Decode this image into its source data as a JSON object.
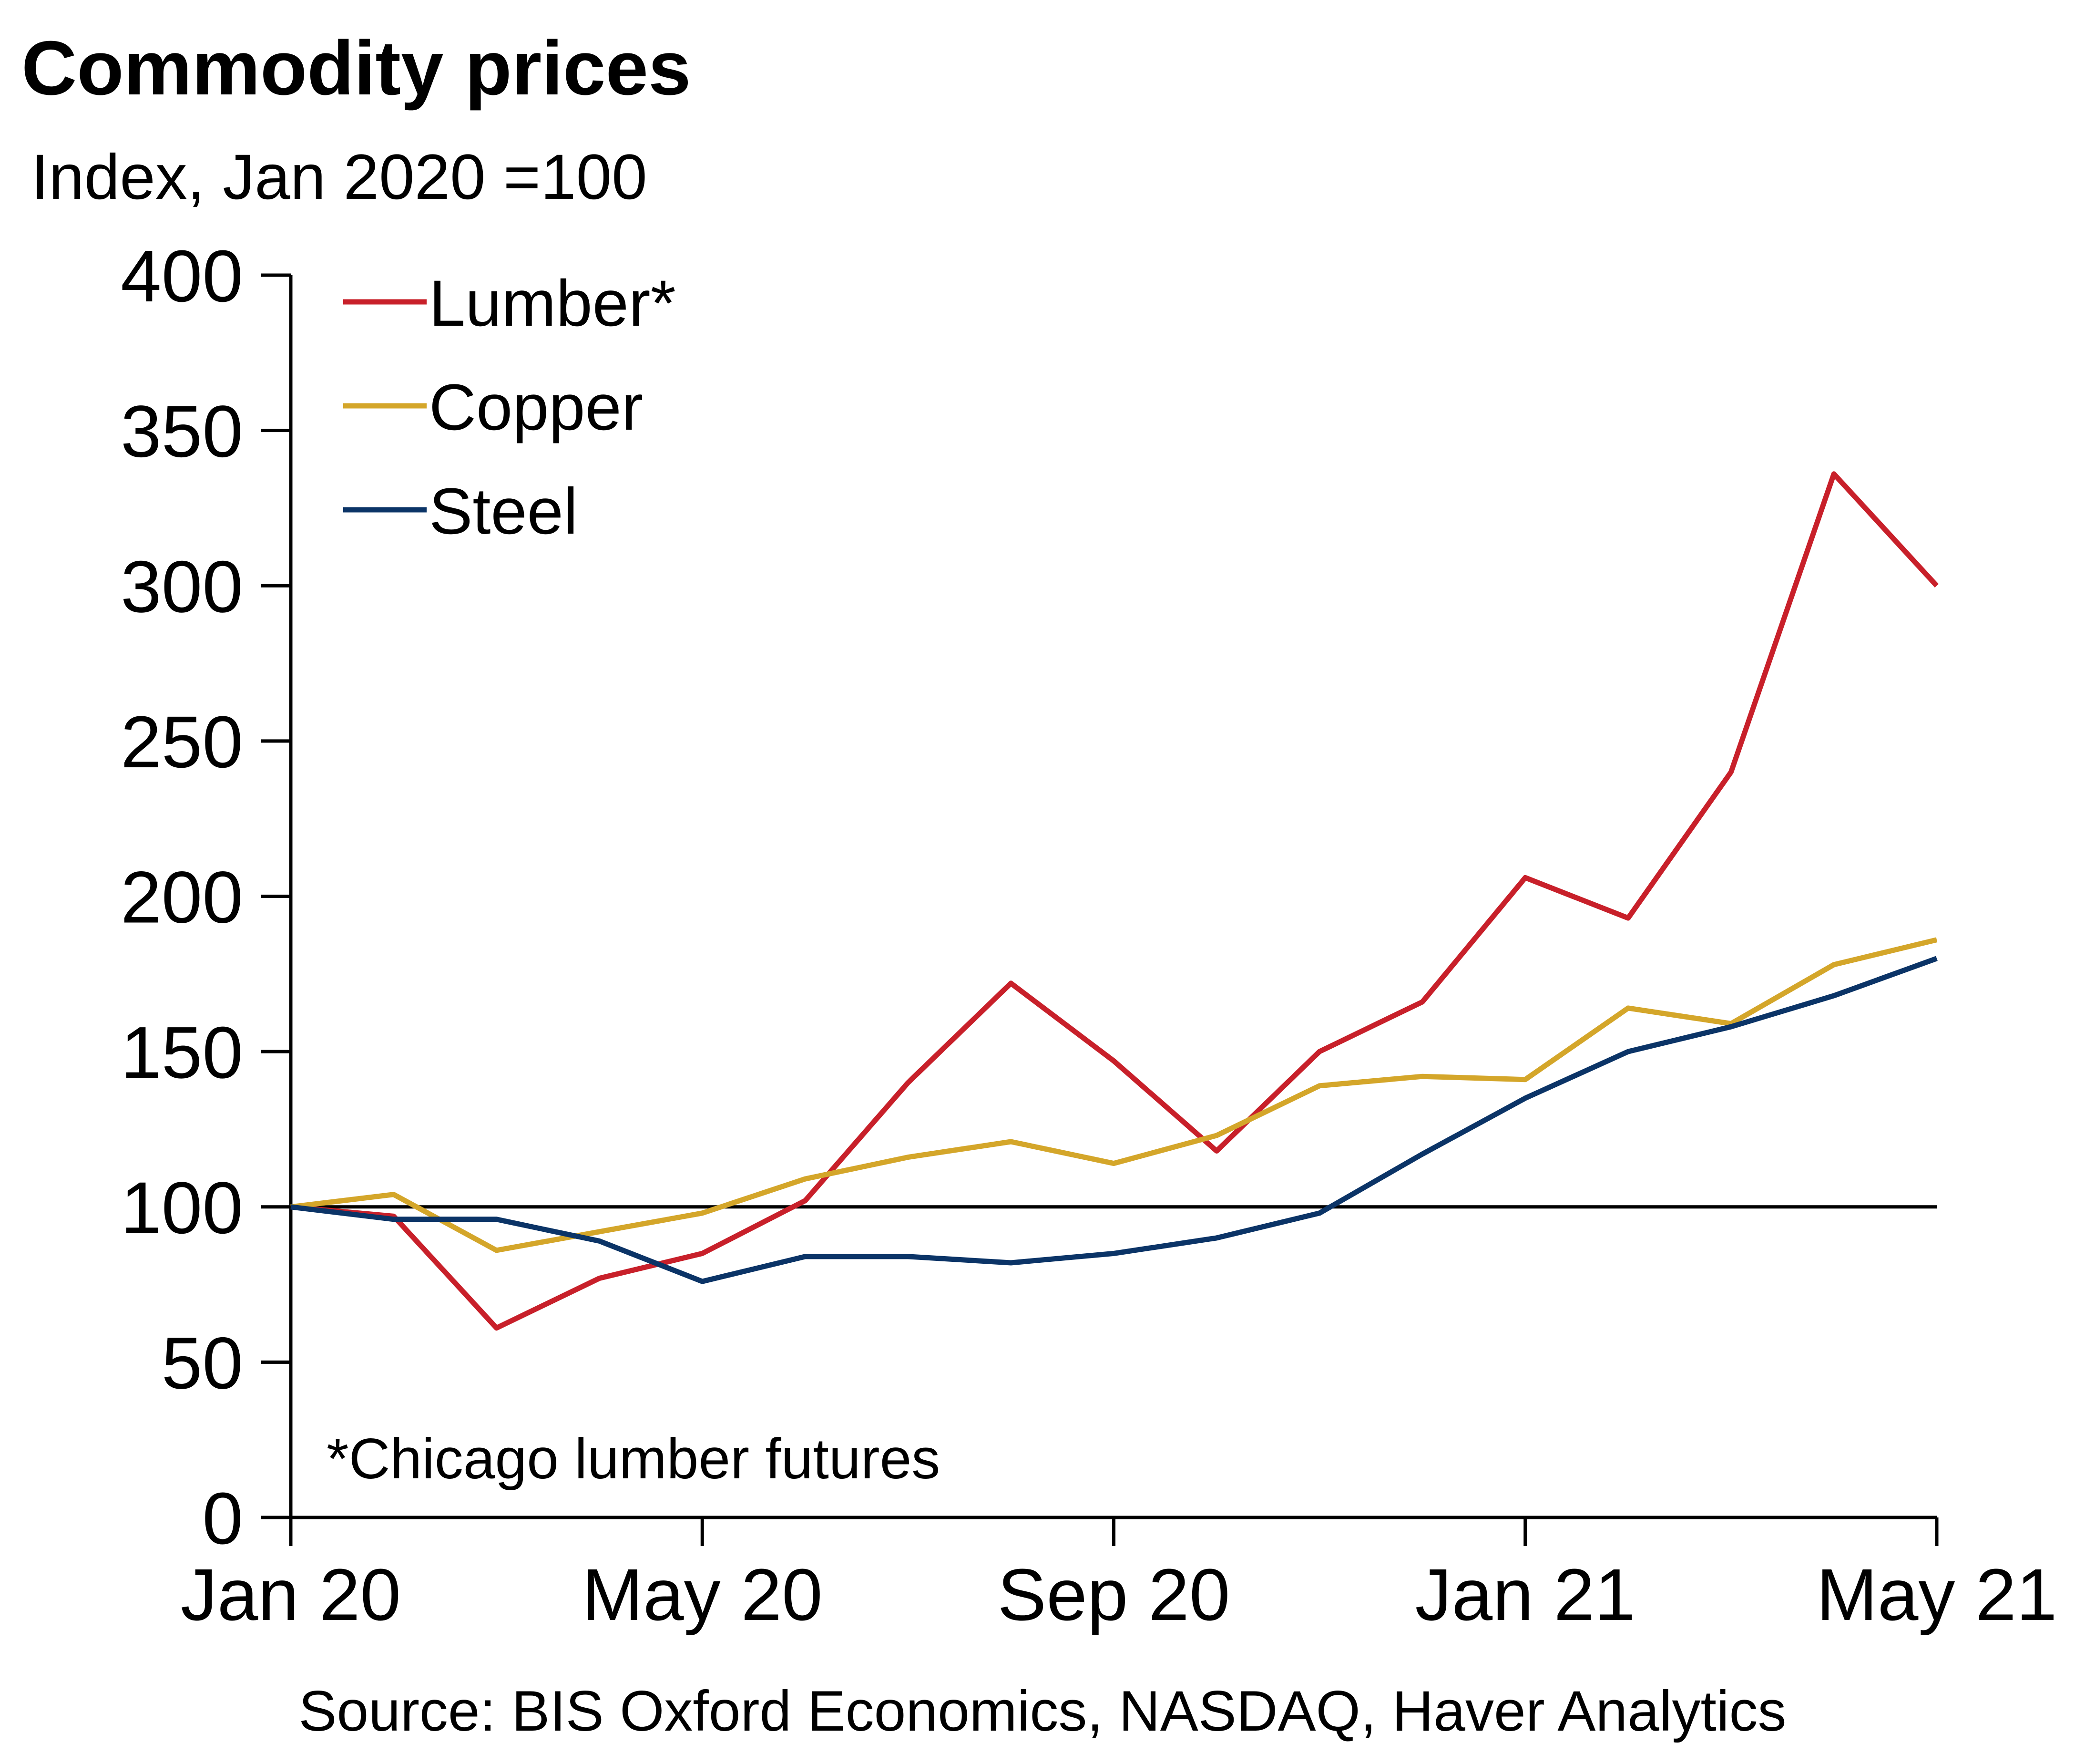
{
  "chart_data": {
    "type": "line",
    "title": "Commodity prices",
    "subtitle": "Index, Jan 2020 =100",
    "xlabel": "",
    "ylabel": "",
    "ylim": [
      0,
      400
    ],
    "yticks": [
      0,
      50,
      100,
      150,
      200,
      250,
      300,
      350,
      400
    ],
    "x": [
      "Jan 20",
      "Feb 20",
      "Mar 20",
      "Apr 20",
      "May 20",
      "Jun 20",
      "Jul 20",
      "Aug 20",
      "Sep 20",
      "Oct 20",
      "Nov 20",
      "Dec 20",
      "Jan 21",
      "Feb 21",
      "Mar 21",
      "Apr 21",
      "May 21"
    ],
    "xtick_labels": [
      {
        "index": 0,
        "label": "Jan 20"
      },
      {
        "index": 4,
        "label": "May 20"
      },
      {
        "index": 8,
        "label": "Sep 20"
      },
      {
        "index": 12,
        "label": "Jan 21"
      },
      {
        "index": 16,
        "label": "May 21"
      }
    ],
    "reference_line": 100,
    "legend_position": "top-left",
    "series": [
      {
        "name": "Lumber*",
        "color": "#C8202A",
        "values": [
          100,
          97,
          61,
          77,
          85,
          102,
          140,
          172,
          147,
          118,
          150,
          166,
          206,
          193,
          240,
          336,
          300
        ]
      },
      {
        "name": "Copper",
        "color": "#D4A62A",
        "values": [
          100,
          104,
          86,
          92,
          98,
          109,
          116,
          121,
          114,
          123,
          139,
          142,
          141,
          164,
          159,
          178,
          186
        ]
      },
      {
        "name": "Steel",
        "color": "#0B3467",
        "values": [
          100,
          96,
          96,
          89,
          76,
          84,
          84,
          82,
          85,
          90,
          98,
          117,
          135,
          150,
          158,
          168,
          180
        ]
      }
    ],
    "note": "*Chicago lumber futures",
    "source": "Source: BIS Oxford Economics, NASDAQ, Haver Analytics"
  }
}
